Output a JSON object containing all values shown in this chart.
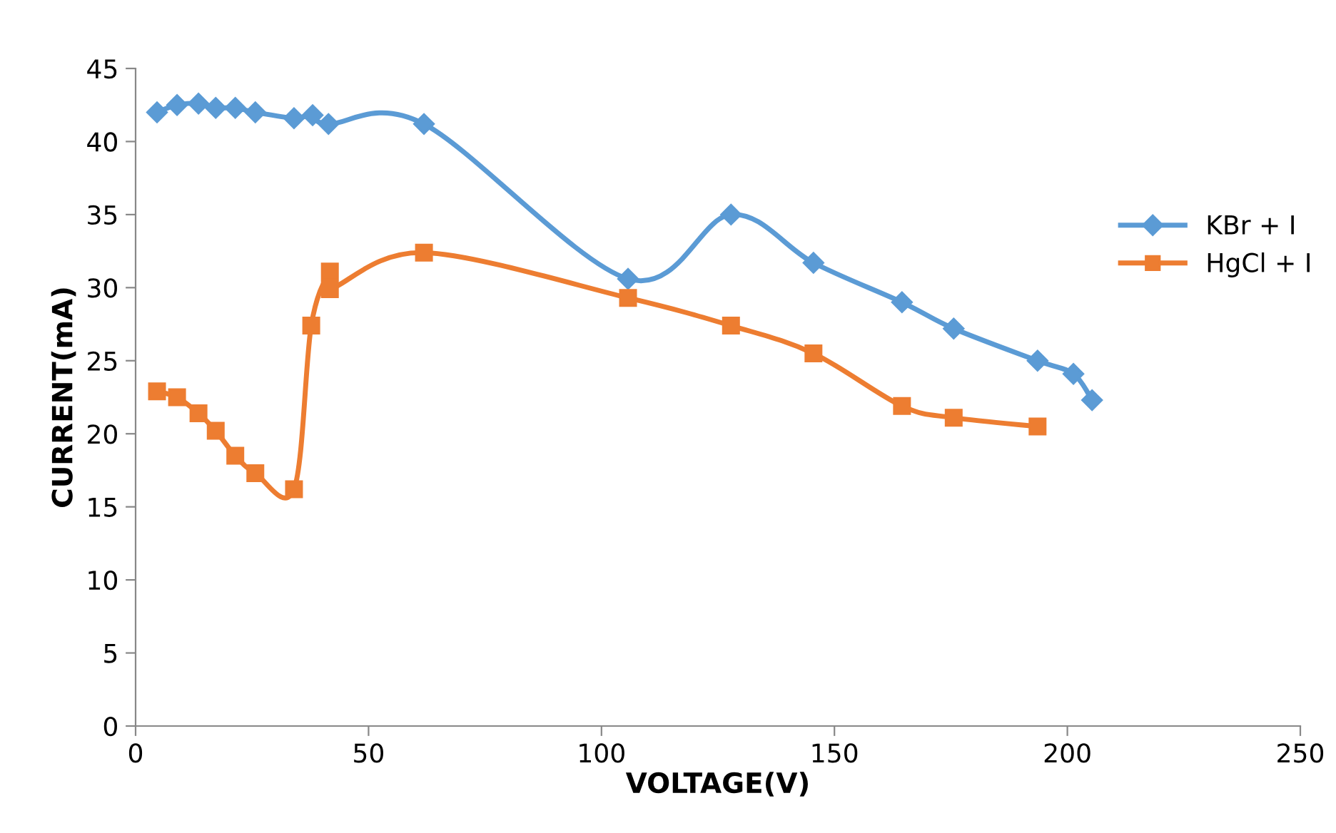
{
  "chart_data": {
    "type": "line",
    "xlabel": "VOLTAGE(V)",
    "ylabel": "CURRENT(mA)",
    "xlim": [
      0,
      250
    ],
    "xticks": [
      0,
      50,
      100,
      150,
      200,
      250
    ],
    "ylim": [
      0,
      45
    ],
    "yticks": [
      0,
      5,
      10,
      15,
      20,
      25,
      30,
      35,
      40,
      45
    ],
    "grid": false,
    "legend": "right",
    "line_style": "solid",
    "series": [
      {
        "name": "KBr + I",
        "color": "#5b9bd5",
        "marker": "diamond",
        "x": [
          4.6,
          8.9,
          13.5,
          17.2,
          21.4,
          25.7,
          34.0,
          38.0,
          41.4,
          61.9,
          105.7,
          127.8,
          145.5,
          164.5,
          175.6,
          193.6,
          201.3,
          205.3
        ],
        "values": [
          42.0,
          42.5,
          42.6,
          42.3,
          42.3,
          42.0,
          41.6,
          41.8,
          41.2,
          41.2,
          30.6,
          35.0,
          31.7,
          29.0,
          27.2,
          25.0,
          24.1,
          22.3
        ]
      },
      {
        "name": "HgCl + I",
        "color": "#ed7d31",
        "marker": "square",
        "x": [
          4.6,
          8.9,
          13.5,
          17.2,
          21.4,
          25.7,
          34.0,
          37.7,
          41.7,
          41.7,
          61.9,
          105.7,
          127.8,
          145.5,
          164.5,
          175.6,
          193.6
        ],
        "values": [
          22.9,
          22.5,
          21.4,
          20.2,
          18.5,
          17.3,
          16.2,
          27.4,
          31.1,
          29.9,
          32.4,
          29.3,
          27.4,
          25.5,
          21.9,
          21.1,
          20.5
        ]
      }
    ]
  }
}
